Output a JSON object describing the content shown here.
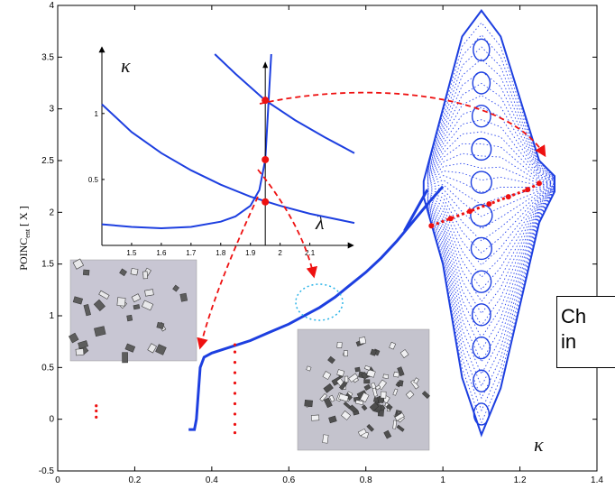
{
  "chart_data": [
    {
      "type": "scatter",
      "title": "",
      "xlabel": "",
      "ylabel": "POINC_ent [ X ]",
      "ylabel_main": "POINC",
      "ylabel_sub": "ent",
      "ylabel_rest": " [ X ]",
      "xlim": [
        0,
        1.4
      ],
      "ylim": [
        -0.5,
        4
      ],
      "xticks": [
        0,
        0.2,
        0.4,
        0.6,
        0.8,
        1,
        1.2,
        1.4
      ],
      "xtick_labels": [
        "0",
        "0.2",
        "0.4",
        "0.6",
        "0.8",
        "1",
        "1.2",
        "1.4"
      ],
      "yticks": [
        -0.5,
        0,
        0.5,
        1,
        1.5,
        2,
        2.5,
        3,
        3.5,
        4
      ],
      "ytick_labels": [
        "-0.5",
        "0",
        "0.5",
        "1",
        "1.5",
        "2",
        "2.5",
        "3",
        "3.5",
        "4"
      ],
      "corner_label": "κ",
      "grid": false,
      "series": [
        {
          "color": "#1d3fe0",
          "x": [
            0.34,
            0.355,
            0.36,
            0.37,
            0.38,
            0.4,
            0.45,
            0.5,
            0.55,
            0.6,
            0.65,
            0.68,
            0.72,
            0.76,
            0.8,
            0.84,
            0.88,
            0.92,
            0.96,
            1.0
          ],
          "y": [
            -0.1,
            -0.1,
            0.0,
            0.5,
            0.6,
            0.64,
            0.7,
            0.76,
            0.84,
            0.92,
            1.02,
            1.08,
            1.18,
            1.3,
            1.42,
            1.56,
            1.72,
            1.9,
            2.08,
            2.25
          ]
        },
        {
          "color": "#1d3fe0",
          "envelope_x": [
            0.95,
            1.0,
            1.05,
            1.1,
            1.15,
            1.2,
            1.25,
            1.29
          ],
          "envelope_upper": [
            2.3,
            3.0,
            3.7,
            3.95,
            3.7,
            3.1,
            2.5,
            2.35
          ],
          "envelope_lower": [
            2.15,
            1.5,
            0.4,
            -0.15,
            0.3,
            1.1,
            1.9,
            2.2
          ]
        },
        {
          "color": "#ee1111",
          "x": [
            0.1,
            0.1,
            0.1,
            0.46,
            0.46,
            0.46,
            0.46,
            0.46,
            0.46,
            0.46,
            0.46,
            0.46,
            0.46
          ],
          "y": [
            0.02,
            0.08,
            0.13,
            -0.13,
            -0.05,
            0.05,
            0.15,
            0.25,
            0.35,
            0.45,
            0.55,
            0.65,
            0.72
          ]
        },
        {
          "color": "#ee1111",
          "x": [
            0.97,
            1.02,
            1.07,
            1.12,
            1.17,
            1.22,
            1.25
          ],
          "y": [
            1.87,
            1.94,
            2.01,
            2.08,
            2.15,
            2.22,
            2.28
          ]
        }
      ]
    },
    {
      "type": "line",
      "title": "",
      "xlabel": "λ",
      "ylabel": "κ",
      "xlim": [
        1.4,
        2.25
      ],
      "ylim": [
        0,
        1.45
      ],
      "xticks": [
        1.5,
        1.6,
        1.7,
        1.8,
        1.9,
        2,
        2.1
      ],
      "xtick_labels": [
        "1.5",
        "1.6",
        "1.7",
        "1.8",
        "1.9",
        "2",
        "2.1"
      ],
      "yticks": [
        0.5,
        1
      ],
      "ytick_labels": [
        "0.5",
        "1"
      ],
      "grid": false,
      "series": [
        {
          "color": "#1d3fe0",
          "x": [
            1.4,
            1.5,
            1.6,
            1.7,
            1.8,
            1.9,
            2.0,
            2.1,
            2.25
          ],
          "y": [
            1.07,
            0.86,
            0.7,
            0.57,
            0.46,
            0.37,
            0.3,
            0.24,
            0.17
          ]
        },
        {
          "color": "#1d3fe0",
          "x": [
            1.4,
            1.5,
            1.6,
            1.7,
            1.8,
            1.85,
            1.9,
            1.93,
            1.95,
            1.96,
            1.97
          ],
          "y": [
            0.16,
            0.14,
            0.13,
            0.14,
            0.18,
            0.22,
            0.3,
            0.42,
            0.65,
            1.05,
            1.45
          ]
        },
        {
          "color": "#1d3fe0",
          "x": [
            1.78,
            1.85,
            1.95,
            2.05,
            2.15,
            2.25
          ],
          "y": [
            1.45,
            1.3,
            1.1,
            0.95,
            0.82,
            0.7
          ]
        }
      ],
      "markers": {
        "color": "#ee1111",
        "x": [
          1.95,
          1.95,
          1.95
        ],
        "y": [
          1.1,
          0.65,
          0.33
        ]
      },
      "vline_x": 1.95
    }
  ],
  "photos": [
    {
      "name": "helical-ribbons-photo"
    },
    {
      "name": "scattered-fragments-photo"
    }
  ],
  "callout": {
    "line1": "Ch",
    "line2": "in"
  }
}
